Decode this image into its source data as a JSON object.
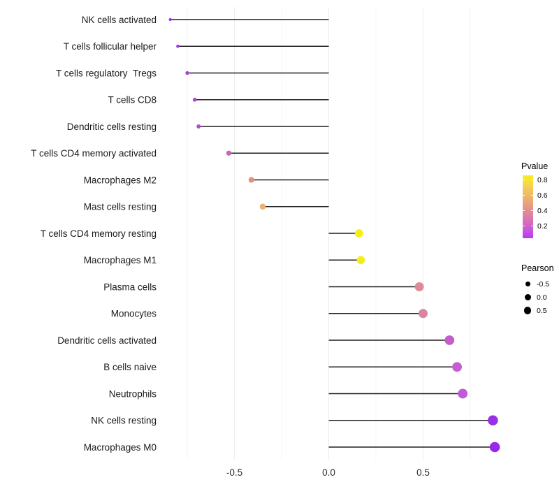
{
  "chart_data": {
    "type": "lollipop",
    "base_type": "scatter",
    "orientation": "horizontal",
    "title": "",
    "xlabel": "",
    "ylabel": "",
    "categories": [
      "NK cells activated",
      "T cells follicular helper",
      "T cells regulatory  Tregs",
      "T cells CD8",
      "Dendritic cells resting",
      "T cells CD4 memory activated",
      "Macrophages M2",
      "Mast cells resting",
      "T cells CD4 memory resting",
      "Macrophages M1",
      "Plasma cells",
      "Monocytes",
      "Dendritic cells activated",
      "B cells naive",
      "Neutrophils",
      "NK cells resting",
      "Macrophages M0"
    ],
    "series": [
      {
        "name": "Pearson correlation",
        "values": [
          -0.84,
          -0.8,
          -0.75,
          -0.71,
          -0.69,
          -0.53,
          -0.41,
          -0.35,
          0.16,
          0.17,
          0.48,
          0.5,
          0.64,
          0.68,
          0.71,
          0.87,
          0.88
        ]
      }
    ],
    "point_colors": [
      "#9632ec",
      "#a335e2",
      "#a93bda",
      "#ae45d2",
      "#b34ccd",
      "#c966b2",
      "#e2917e",
      "#ecb16c",
      "#f6ec16",
      "#f6ec16",
      "#dd8b9b",
      "#da85a0",
      "#c55ccb",
      "#c55cd1",
      "#c05ad9",
      "#9a30e5",
      "#9829e9"
    ],
    "x_tick_labels": [
      "-0.5",
      "0.0",
      "0.5"
    ],
    "x_tick_values": [
      -0.5,
      0.0,
      0.5
    ],
    "x_minor_grid_values": [
      -0.75,
      -0.25,
      0.25,
      0.75
    ],
    "xlim": [
      -0.93,
      0.98
    ],
    "grid": "vertical only, light gray",
    "stem_color": "#1f1f1f",
    "baseline_x": 0.0,
    "legend_position": "right",
    "size_encoding": "Pearson",
    "color_encoding": "Pvalue"
  },
  "legend": {
    "pvalue": {
      "title": "Pvalue",
      "ticks": [
        "0.8",
        "0.6",
        "0.4",
        "0.2"
      ],
      "gradient_top_color": "#f9ee1e",
      "gradient_bottom_color": "#b63bf2"
    },
    "pearson": {
      "title": "Pearson",
      "items": [
        {
          "label": "-0.5"
        },
        {
          "label": "0.0"
        },
        {
          "label": "0.5"
        }
      ]
    }
  }
}
